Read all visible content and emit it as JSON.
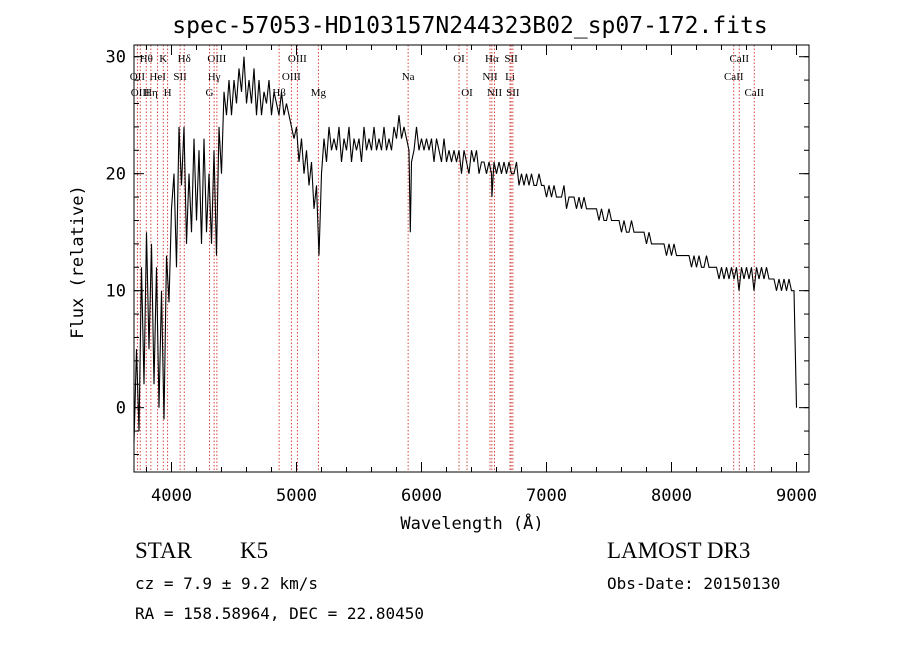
{
  "chart_data": {
    "type": "line",
    "title": "spec-57053-HD103157N244323B02_sp07-172.fits",
    "xlabel": "Wavelength (Å)",
    "ylabel": "Flux (relative)",
    "xlim": [
      3700,
      9100
    ],
    "ylim": [
      -5.5,
      31
    ],
    "xticks": [
      4000,
      5000,
      6000,
      7000,
      8000,
      9000
    ],
    "yticks": [
      0,
      10,
      20,
      30
    ],
    "xtick_labels": [
      "4000",
      "5000",
      "6000",
      "7000",
      "8000",
      "9000"
    ],
    "ytick_labels": [
      "0",
      "10",
      "20",
      "30"
    ],
    "x_minor_step": 200,
    "y_minor_step": 2,
    "grid": false,
    "line_color": "#000000",
    "marker_color": "#d0302a",
    "series": [
      {
        "name": "flux",
        "points": [
          [
            3700,
            -3
          ],
          [
            3720,
            5
          ],
          [
            3740,
            -2
          ],
          [
            3760,
            12
          ],
          [
            3780,
            2
          ],
          [
            3800,
            15
          ],
          [
            3820,
            5
          ],
          [
            3840,
            14
          ],
          [
            3860,
            2
          ],
          [
            3880,
            12
          ],
          [
            3900,
            0
          ],
          [
            3920,
            10
          ],
          [
            3940,
            -1
          ],
          [
            3960,
            13
          ],
          [
            3980,
            9
          ],
          [
            4000,
            17
          ],
          [
            4020,
            20
          ],
          [
            4040,
            12
          ],
          [
            4060,
            24
          ],
          [
            4080,
            19
          ],
          [
            4100,
            24
          ],
          [
            4120,
            14
          ],
          [
            4140,
            20
          ],
          [
            4160,
            15
          ],
          [
            4180,
            23
          ],
          [
            4200,
            16
          ],
          [
            4220,
            22
          ],
          [
            4240,
            14
          ],
          [
            4260,
            23
          ],
          [
            4280,
            15
          ],
          [
            4300,
            20
          ],
          [
            4320,
            14
          ],
          [
            4340,
            22
          ],
          [
            4360,
            13
          ],
          [
            4380,
            24
          ],
          [
            4400,
            20
          ],
          [
            4420,
            27
          ],
          [
            4440,
            25
          ],
          [
            4460,
            28
          ],
          [
            4480,
            25
          ],
          [
            4500,
            28
          ],
          [
            4520,
            26
          ],
          [
            4540,
            29
          ],
          [
            4560,
            27
          ],
          [
            4580,
            30
          ],
          [
            4600,
            26
          ],
          [
            4620,
            28
          ],
          [
            4640,
            26
          ],
          [
            4660,
            29
          ],
          [
            4680,
            25
          ],
          [
            4700,
            28
          ],
          [
            4720,
            25
          ],
          [
            4740,
            27
          ],
          [
            4760,
            26
          ],
          [
            4780,
            28
          ],
          [
            4800,
            25
          ],
          [
            4820,
            27
          ],
          [
            4840,
            26
          ],
          [
            4860,
            25
          ],
          [
            4880,
            27
          ],
          [
            4900,
            25
          ],
          [
            4920,
            26
          ],
          [
            4940,
            25
          ],
          [
            4960,
            24
          ],
          [
            4980,
            23
          ],
          [
            5000,
            24
          ],
          [
            5020,
            21
          ],
          [
            5040,
            23
          ],
          [
            5060,
            20
          ],
          [
            5080,
            22
          ],
          [
            5100,
            19
          ],
          [
            5120,
            21
          ],
          [
            5140,
            17
          ],
          [
            5160,
            19
          ],
          [
            5180,
            13
          ],
          [
            5200,
            20
          ],
          [
            5220,
            23
          ],
          [
            5240,
            21
          ],
          [
            5260,
            24
          ],
          [
            5280,
            22
          ],
          [
            5300,
            23
          ],
          [
            5320,
            22
          ],
          [
            5340,
            24
          ],
          [
            5360,
            21
          ],
          [
            5380,
            23
          ],
          [
            5400,
            22
          ],
          [
            5420,
            24
          ],
          [
            5440,
            21
          ],
          [
            5460,
            23
          ],
          [
            5480,
            22
          ],
          [
            5500,
            23
          ],
          [
            5520,
            21
          ],
          [
            5540,
            24
          ],
          [
            5560,
            22
          ],
          [
            5580,
            23
          ],
          [
            5600,
            22
          ],
          [
            5620,
            24
          ],
          [
            5640,
            22
          ],
          [
            5660,
            23
          ],
          [
            5680,
            22
          ],
          [
            5700,
            24
          ],
          [
            5720,
            22
          ],
          [
            5740,
            23
          ],
          [
            5760,
            22
          ],
          [
            5780,
            24
          ],
          [
            5800,
            23
          ],
          [
            5820,
            25
          ],
          [
            5840,
            23
          ],
          [
            5860,
            24
          ],
          [
            5880,
            23
          ],
          [
            5900,
            22
          ],
          [
            5910,
            15
          ],
          [
            5920,
            21
          ],
          [
            5940,
            22
          ],
          [
            5960,
            24
          ],
          [
            5980,
            22
          ],
          [
            6000,
            23
          ],
          [
            6020,
            22
          ],
          [
            6040,
            23
          ],
          [
            6060,
            22
          ],
          [
            6080,
            23
          ],
          [
            6100,
            21
          ],
          [
            6120,
            23
          ],
          [
            6140,
            22
          ],
          [
            6160,
            21
          ],
          [
            6180,
            23
          ],
          [
            6200,
            21
          ],
          [
            6220,
            22
          ],
          [
            6240,
            21
          ],
          [
            6260,
            22
          ],
          [
            6280,
            21
          ],
          [
            6300,
            22
          ],
          [
            6320,
            20
          ],
          [
            6340,
            22
          ],
          [
            6360,
            21
          ],
          [
            6380,
            20
          ],
          [
            6400,
            22
          ],
          [
            6420,
            21
          ],
          [
            6440,
            22
          ],
          [
            6460,
            20
          ],
          [
            6480,
            21
          ],
          [
            6500,
            21
          ],
          [
            6520,
            20
          ],
          [
            6540,
            21
          ],
          [
            6560,
            20
          ],
          [
            6563,
            18
          ],
          [
            6580,
            21
          ],
          [
            6600,
            20
          ],
          [
            6620,
            21
          ],
          [
            6640,
            20
          ],
          [
            6660,
            21
          ],
          [
            6680,
            20
          ],
          [
            6700,
            21
          ],
          [
            6720,
            20
          ],
          [
            6740,
            20
          ],
          [
            6760,
            21
          ],
          [
            6780,
            19
          ],
          [
            6800,
            20
          ],
          [
            6820,
            19
          ],
          [
            6840,
            20
          ],
          [
            6860,
            19
          ],
          [
            6880,
            20
          ],
          [
            6900,
            19
          ],
          [
            6920,
            19
          ],
          [
            6940,
            20
          ],
          [
            6960,
            19
          ],
          [
            6980,
            19
          ],
          [
            7000,
            18
          ],
          [
            7020,
            19
          ],
          [
            7040,
            18
          ],
          [
            7060,
            19
          ],
          [
            7080,
            18
          ],
          [
            7100,
            18
          ],
          [
            7120,
            18
          ],
          [
            7140,
            19
          ],
          [
            7160,
            17
          ],
          [
            7180,
            18
          ],
          [
            7200,
            18
          ],
          [
            7220,
            18
          ],
          [
            7240,
            17
          ],
          [
            7260,
            18
          ],
          [
            7280,
            17
          ],
          [
            7300,
            18
          ],
          [
            7320,
            17
          ],
          [
            7340,
            17
          ],
          [
            7360,
            17
          ],
          [
            7380,
            17
          ],
          [
            7400,
            17
          ],
          [
            7420,
            16
          ],
          [
            7440,
            17
          ],
          [
            7460,
            16
          ],
          [
            7480,
            16
          ],
          [
            7500,
            17
          ],
          [
            7520,
            16
          ],
          [
            7540,
            16
          ],
          [
            7560,
            16
          ],
          [
            7580,
            16
          ],
          [
            7600,
            15
          ],
          [
            7620,
            16
          ],
          [
            7640,
            15
          ],
          [
            7660,
            15
          ],
          [
            7680,
            16
          ],
          [
            7700,
            15
          ],
          [
            7720,
            15
          ],
          [
            7740,
            15
          ],
          [
            7760,
            15
          ],
          [
            7780,
            15
          ],
          [
            7800,
            14
          ],
          [
            7820,
            15
          ],
          [
            7840,
            14
          ],
          [
            7860,
            14
          ],
          [
            7880,
            14
          ],
          [
            7900,
            14
          ],
          [
            7920,
            14
          ],
          [
            7940,
            14
          ],
          [
            7960,
            13
          ],
          [
            7980,
            14
          ],
          [
            8000,
            13
          ],
          [
            8020,
            14
          ],
          [
            8040,
            13
          ],
          [
            8060,
            13
          ],
          [
            8080,
            13
          ],
          [
            8100,
            13
          ],
          [
            8120,
            13
          ],
          [
            8140,
            13
          ],
          [
            8160,
            12
          ],
          [
            8180,
            13
          ],
          [
            8200,
            12
          ],
          [
            8220,
            13
          ],
          [
            8240,
            12
          ],
          [
            8260,
            12
          ],
          [
            8280,
            13
          ],
          [
            8300,
            12
          ],
          [
            8320,
            12
          ],
          [
            8340,
            12
          ],
          [
            8360,
            12
          ],
          [
            8380,
            11
          ],
          [
            8400,
            12
          ],
          [
            8420,
            11
          ],
          [
            8440,
            12
          ],
          [
            8460,
            11
          ],
          [
            8480,
            12
          ],
          [
            8500,
            11
          ],
          [
            8520,
            12
          ],
          [
            8540,
            10
          ],
          [
            8560,
            12
          ],
          [
            8580,
            11
          ],
          [
            8600,
            12
          ],
          [
            8620,
            11
          ],
          [
            8640,
            12
          ],
          [
            8660,
            10
          ],
          [
            8680,
            12
          ],
          [
            8700,
            11
          ],
          [
            8720,
            12
          ],
          [
            8740,
            11
          ],
          [
            8760,
            12
          ],
          [
            8780,
            11
          ],
          [
            8800,
            11
          ],
          [
            8820,
            11
          ],
          [
            8840,
            10
          ],
          [
            8860,
            11
          ],
          [
            8880,
            10
          ],
          [
            8900,
            11
          ],
          [
            8920,
            10
          ],
          [
            8940,
            11
          ],
          [
            8960,
            10
          ],
          [
            8980,
            10
          ],
          [
            9000,
            0
          ]
        ]
      }
    ],
    "line_markers": [
      {
        "label": "OII",
        "wl": 3727,
        "row": 2
      },
      {
        "label": "Hθ",
        "wl": 3798,
        "row": 1
      },
      {
        "label": "OIII",
        "wl": 3750,
        "row": 3
      },
      {
        "label": "HeI",
        "wl": 3889,
        "row": 2
      },
      {
        "label": "Hη",
        "wl": 3835,
        "row": 3
      },
      {
        "label": "K",
        "wl": 3934,
        "row": 1
      },
      {
        "label": "SII",
        "wl": 4069,
        "row": 2
      },
      {
        "label": "H",
        "wl": 3969,
        "row": 3
      },
      {
        "label": "Hδ",
        "wl": 4102,
        "row": 1
      },
      {
        "label": "OIII",
        "wl": 4363,
        "row": 1
      },
      {
        "label": "Hγ",
        "wl": 4341,
        "row": 2
      },
      {
        "label": "G",
        "wl": 4304,
        "row": 3
      },
      {
        "label": "OIII",
        "wl": 5007,
        "row": 1
      },
      {
        "label": "OIII",
        "wl": 4959,
        "row": 2
      },
      {
        "label": "Hβ",
        "wl": 4861,
        "row": 3
      },
      {
        "label": "Mg",
        "wl": 5175,
        "row": 3
      },
      {
        "label": "Na",
        "wl": 5893,
        "row": 2
      },
      {
        "label": "OI",
        "wl": 6300,
        "row": 1
      },
      {
        "label": "OI",
        "wl": 6364,
        "row": 3
      },
      {
        "label": "Hα",
        "wl": 6563,
        "row": 1
      },
      {
        "label": "NII",
        "wl": 6548,
        "row": 2
      },
      {
        "label": "NII",
        "wl": 6584,
        "row": 3
      },
      {
        "label": "SII",
        "wl": 6717,
        "row": 1
      },
      {
        "label": "Li",
        "wl": 6708,
        "row": 2
      },
      {
        "label": "SII",
        "wl": 6731,
        "row": 3
      },
      {
        "label": "CaII",
        "wl": 8542,
        "row": 1
      },
      {
        "label": "CaII",
        "wl": 8498,
        "row": 2
      },
      {
        "label": "CaII",
        "wl": 8662,
        "row": 3
      }
    ]
  },
  "info": {
    "object_class": "STAR",
    "subclass": "K5",
    "survey": "LAMOST DR3",
    "cz": "cz = 7.9 ± 9.2 km/s",
    "obs_date": "Obs-Date: 20150130",
    "coords": "RA = 158.58964, DEC =  22.80450"
  }
}
